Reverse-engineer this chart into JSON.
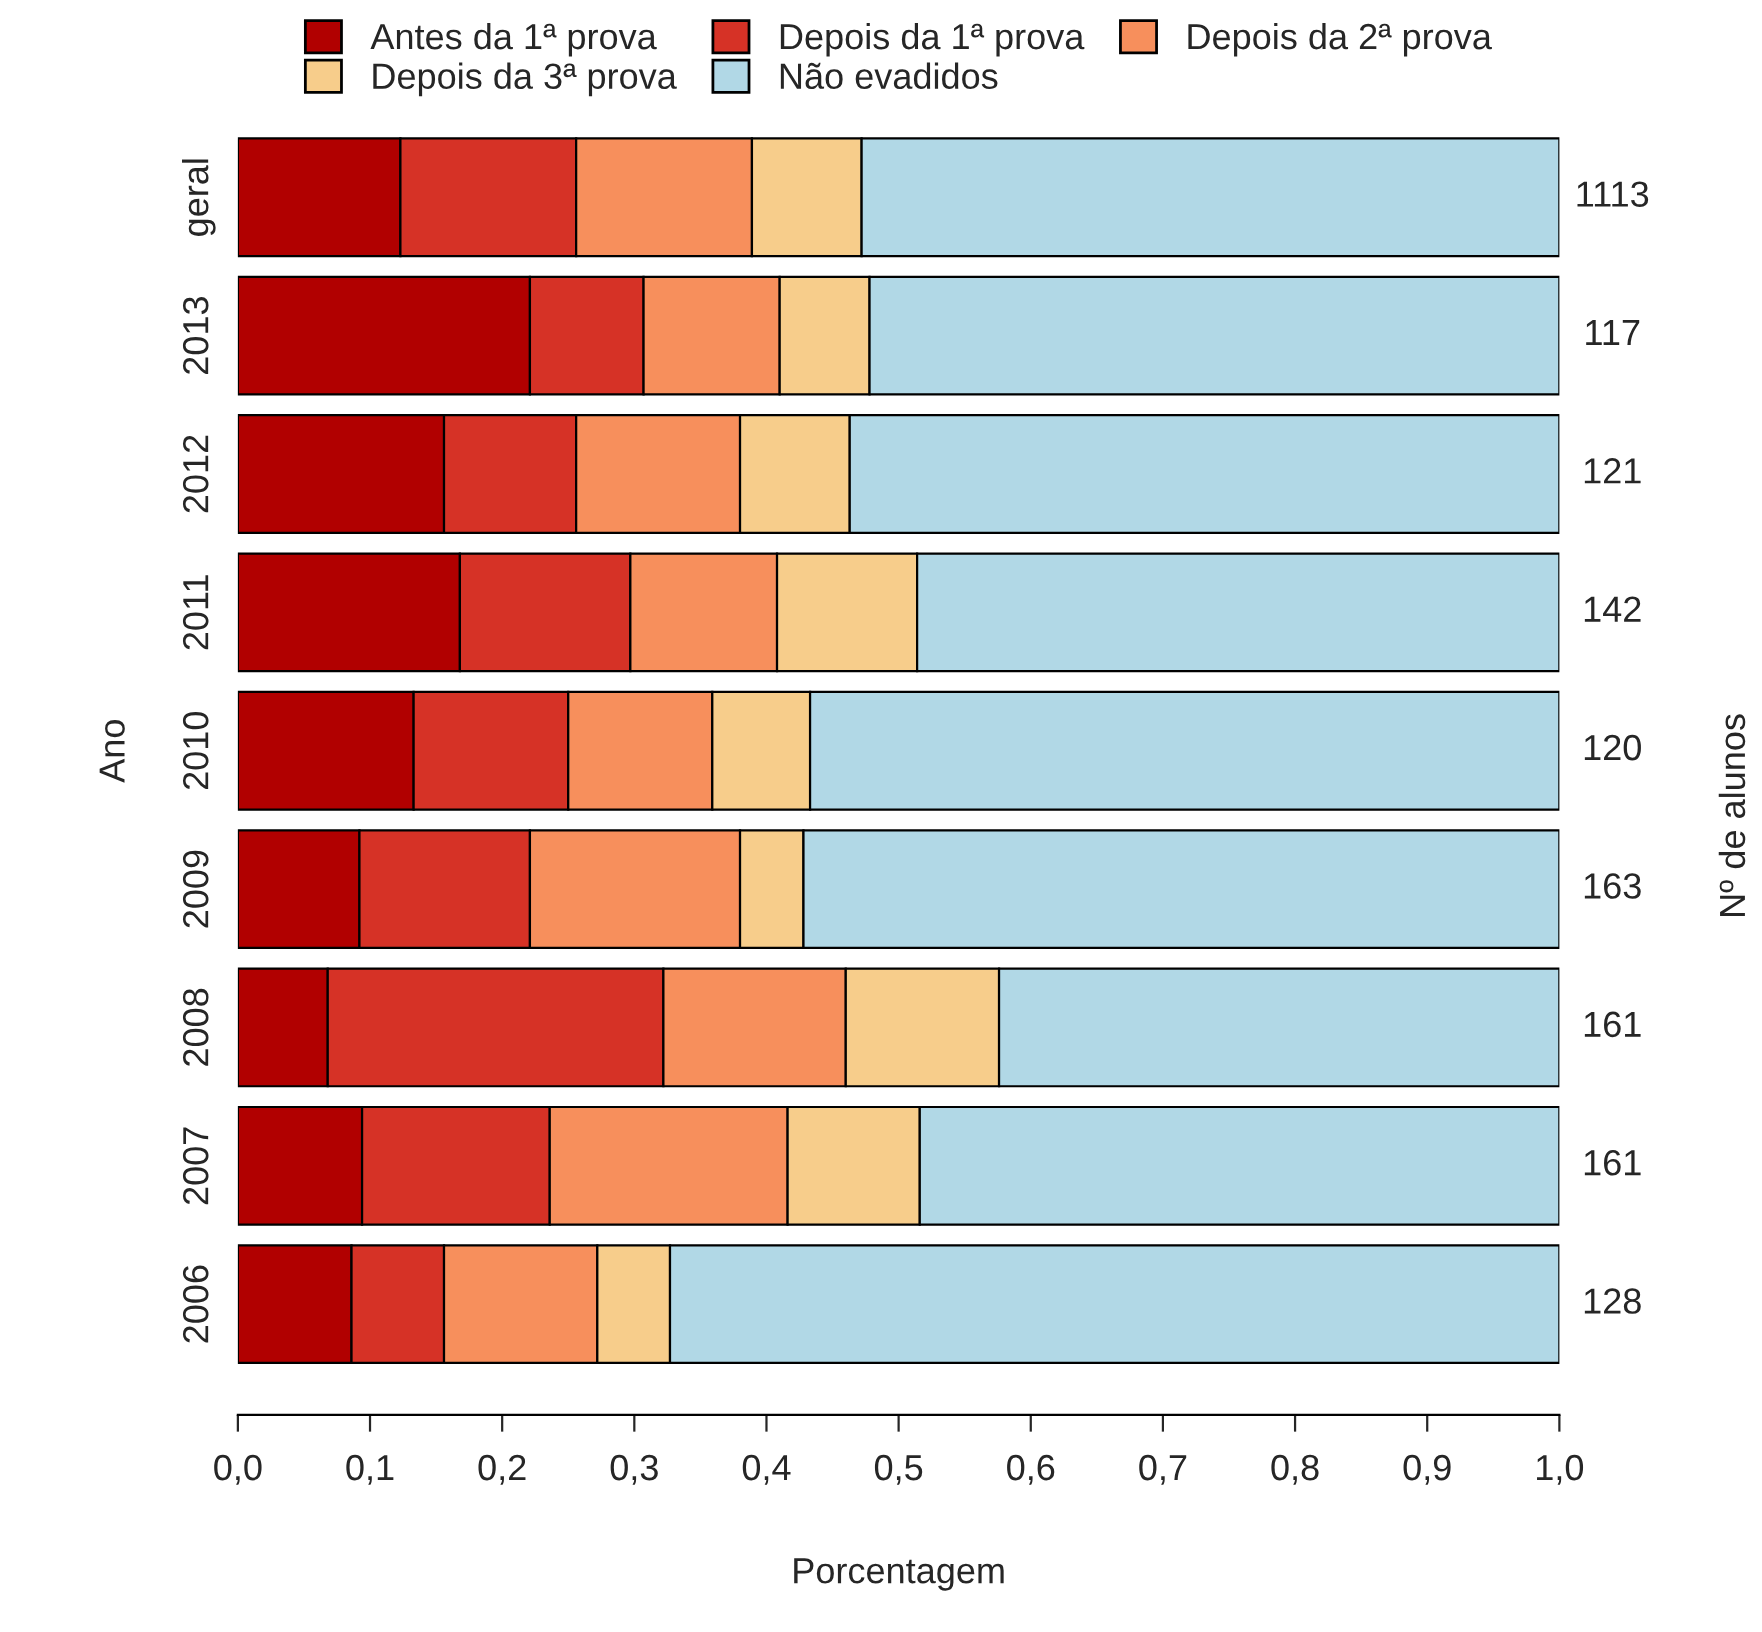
{
  "chart_data": {
    "type": "bar",
    "orientation": "horizontal",
    "stacked": true,
    "xlabel": "Porcentagem",
    "ylabel": "Ano",
    "y2label": "Nº de alunos",
    "categories": [
      "geral",
      "2013",
      "2012",
      "2011",
      "2010",
      "2009",
      "2008",
      "2007",
      "2006"
    ],
    "series": [
      {
        "name": "Antes da 1ª prova",
        "color": "#b10000",
        "values": [
          0.123,
          0.221,
          0.156,
          0.168,
          0.133,
          0.092,
          0.068,
          0.094,
          0.086
        ]
      },
      {
        "name": "Depois da 1ª prova",
        "color": "#d63226",
        "values": [
          0.133,
          0.086,
          0.1,
          0.129,
          0.117,
          0.129,
          0.254,
          0.142,
          0.07
        ]
      },
      {
        "name": "Depois da 2ª prova",
        "color": "#f78f5c",
        "values": [
          0.133,
          0.103,
          0.124,
          0.111,
          0.109,
          0.159,
          0.138,
          0.18,
          0.116
        ]
      },
      {
        "name": "Depois da 3ª prova",
        "color": "#f7cd8b",
        "values": [
          0.083,
          0.068,
          0.083,
          0.106,
          0.074,
          0.048,
          0.116,
          0.1,
          0.055
        ]
      },
      {
        "name": "Não evadidos",
        "color": "#b1d8e6",
        "values": [
          0.528,
          0.522,
          0.537,
          0.486,
          0.567,
          0.572,
          0.424,
          0.484,
          0.673
        ]
      }
    ],
    "xlim": [
      0,
      1
    ],
    "xticks": [
      {
        "value": 0,
        "label": "0,0"
      },
      {
        "value": 0.1,
        "label": "0,1"
      },
      {
        "value": 0.2,
        "label": "0,2"
      },
      {
        "value": 0.3,
        "label": "0,3"
      },
      {
        "value": 0.4,
        "label": "0,4"
      },
      {
        "value": 0.5,
        "label": "0,5"
      },
      {
        "value": 0.6,
        "label": "0,6"
      },
      {
        "value": 0.7,
        "label": "0,7"
      },
      {
        "value": 0.8,
        "label": "0,8"
      },
      {
        "value": 0.9,
        "label": "0,9"
      },
      {
        "value": 1,
        "label": "1,0"
      }
    ],
    "annotations": [
      "1113",
      "117",
      "121",
      "142",
      "120",
      "163",
      "161",
      "161",
      "128"
    ],
    "legend": "top",
    "grid": false
  }
}
